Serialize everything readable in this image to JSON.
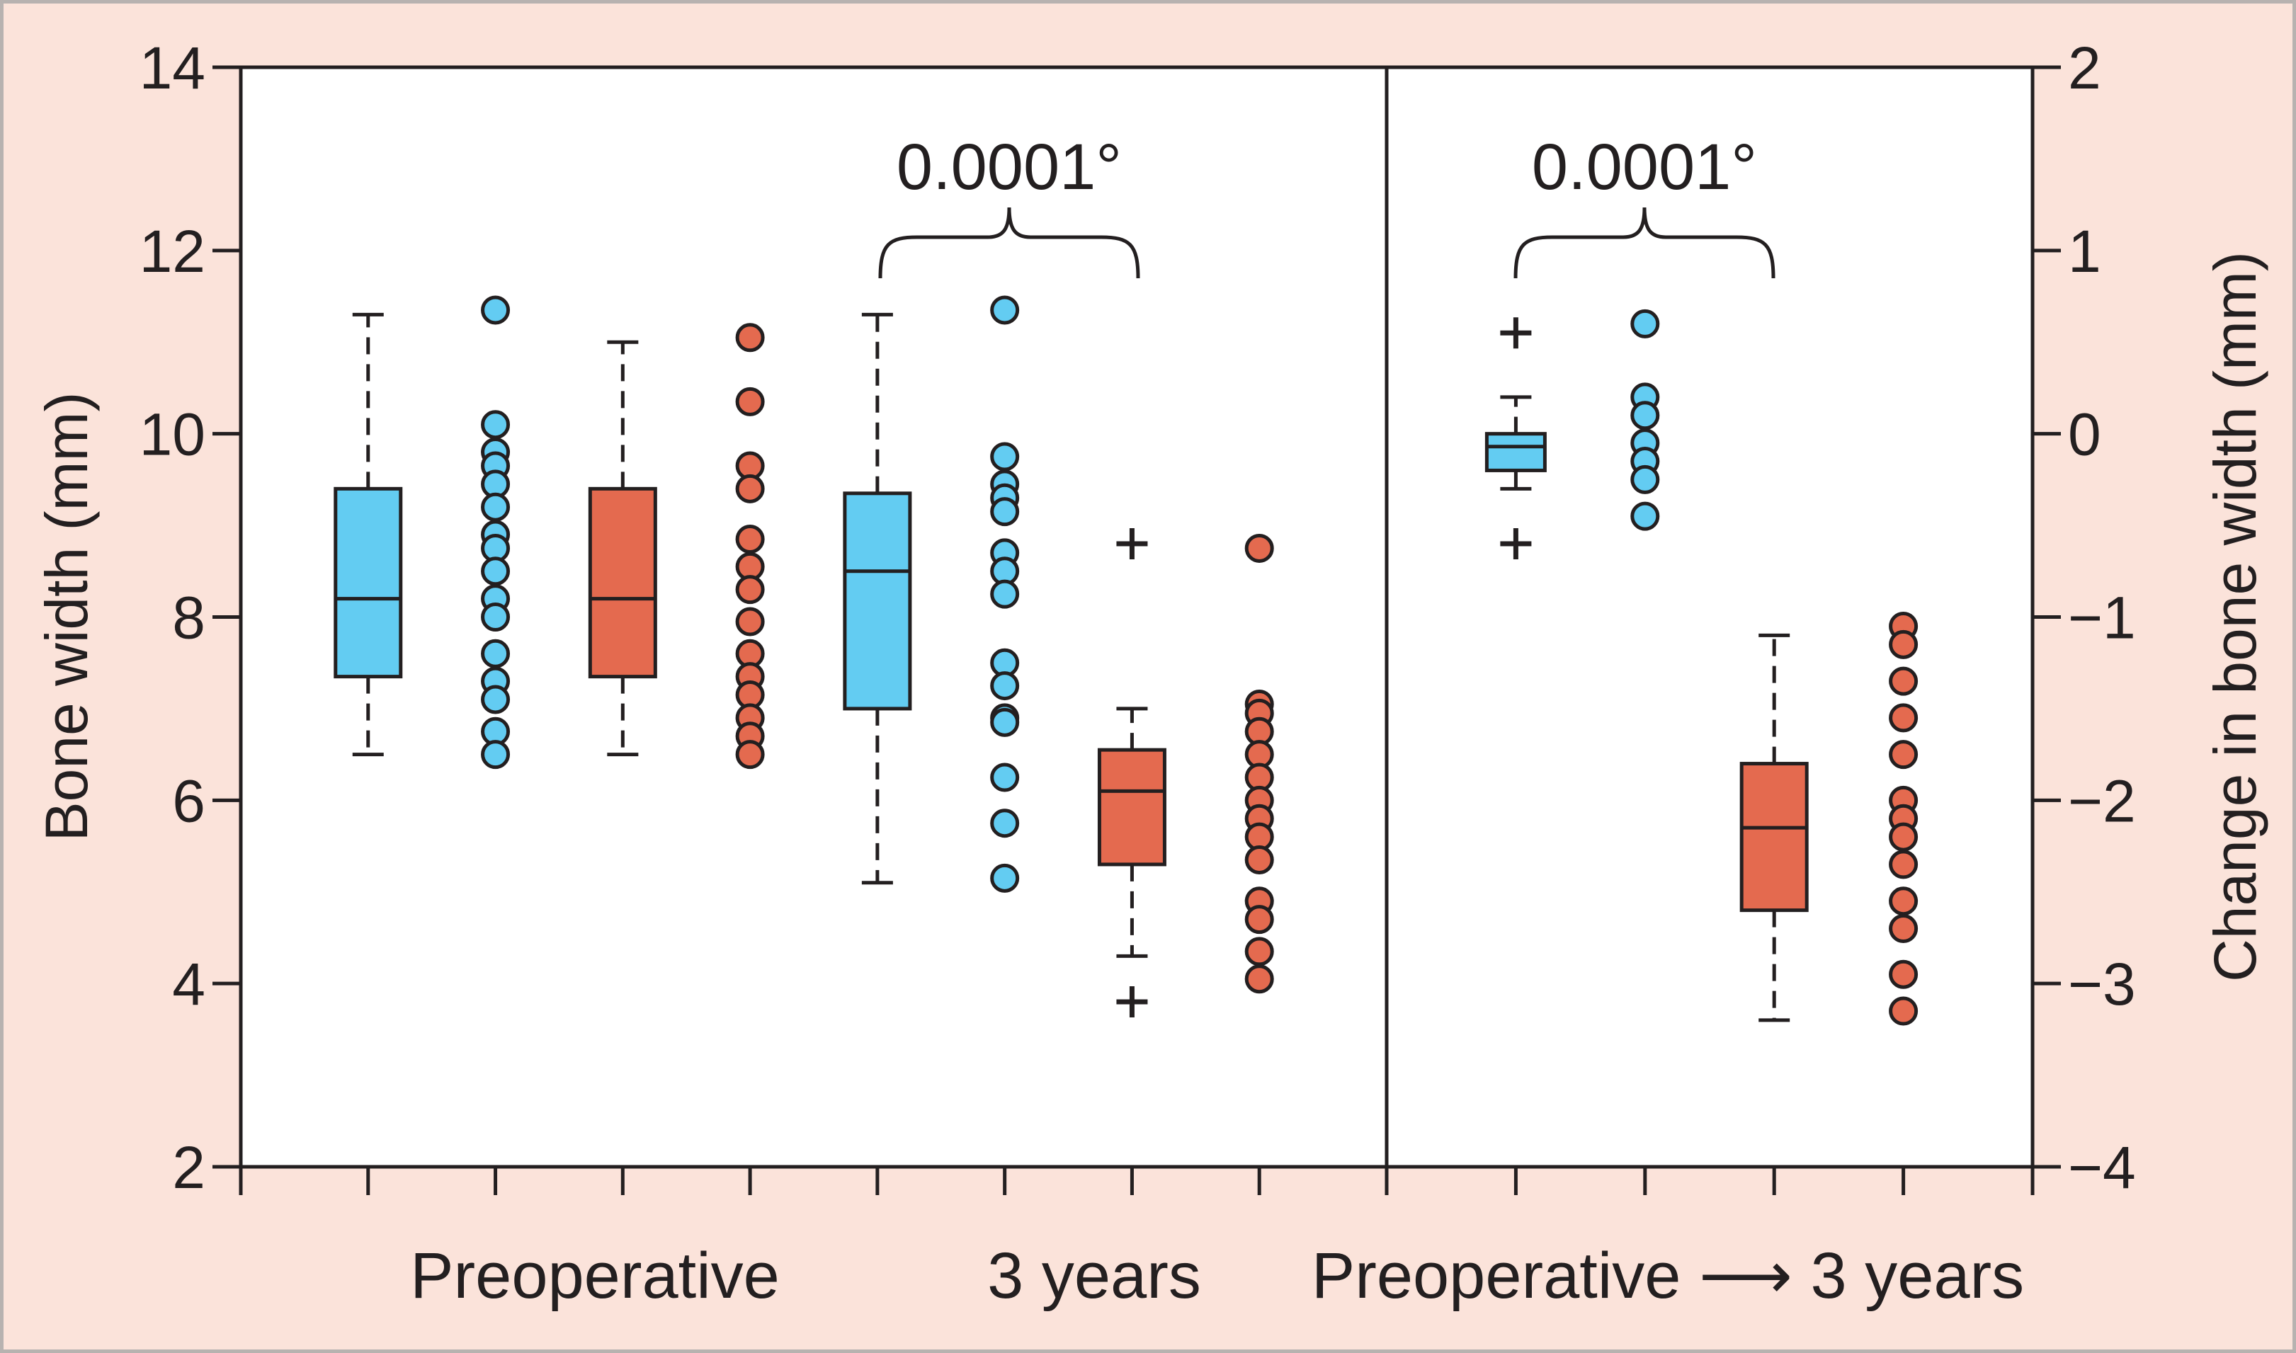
{
  "chart_data": {
    "type": "box",
    "colors": {
      "blue": "#63ccf2",
      "orange": "#e46a4f",
      "outline": "#231f20",
      "background": "#fbe3da"
    },
    "left_axis": {
      "label": "Bone width (mm)",
      "ylim": [
        2,
        14
      ],
      "ticks": [
        "2",
        "4",
        "6",
        "8",
        "10",
        "12",
        "14"
      ]
    },
    "right_axis": {
      "label": "Change in bone width (mm)",
      "ylim": [
        -4,
        2
      ],
      "ticks": [
        "−4",
        "−3",
        "−2",
        "−1",
        "0",
        "1",
        "2"
      ]
    },
    "group_labels": {
      "preoperative": "Preoperative",
      "three_years": "3 years",
      "change": "Preoperative ⟶ 3 years"
    },
    "annotations": [
      {
        "label": "0.0001°",
        "between": [
          "3 years blue",
          "3 years orange"
        ]
      },
      {
        "label": "0.0001°",
        "between": [
          "change blue",
          "change orange"
        ]
      }
    ],
    "left_panel": {
      "boxes": [
        {
          "pos": 1,
          "color": "blue",
          "q1": 7.35,
          "median": 8.2,
          "q3": 9.4,
          "whisker_low": 6.5,
          "whisker_high": 11.3,
          "outliers": []
        },
        {
          "pos": 3,
          "color": "orange",
          "q1": 7.35,
          "median": 8.2,
          "q3": 9.4,
          "whisker_low": 6.5,
          "whisker_high": 11.0,
          "outliers": []
        },
        {
          "pos": 5,
          "color": "blue",
          "q1": 7.0,
          "median": 8.5,
          "q3": 9.35,
          "whisker_low": 5.1,
          "whisker_high": 11.3,
          "outliers": []
        },
        {
          "pos": 7,
          "color": "orange",
          "q1": 5.3,
          "median": 6.1,
          "q3": 6.55,
          "whisker_low": 4.3,
          "whisker_high": 7.0,
          "outliers": [
            8.8,
            3.8
          ]
        }
      ],
      "dots": [
        {
          "pos": 2,
          "color": "blue",
          "values": [
            11.35,
            10.1,
            9.8,
            9.65,
            9.45,
            9.2,
            8.9,
            8.75,
            8.5,
            8.2,
            8.0,
            7.6,
            7.3,
            7.1,
            6.75,
            6.5
          ]
        },
        {
          "pos": 4,
          "color": "orange",
          "values": [
            11.05,
            10.35,
            9.65,
            9.4,
            8.85,
            8.55,
            8.3,
            7.95,
            7.6,
            7.35,
            7.15,
            6.9,
            6.7,
            6.5
          ]
        },
        {
          "pos": 6,
          "color": "blue",
          "values": [
            11.35,
            9.75,
            9.45,
            9.3,
            9.15,
            8.7,
            8.5,
            8.25,
            7.5,
            7.25,
            6.9,
            6.85,
            6.25,
            5.75,
            5.15
          ]
        },
        {
          "pos": 8,
          "color": "orange",
          "values": [
            8.75,
            7.05,
            6.95,
            6.75,
            6.5,
            6.25,
            6.0,
            5.8,
            5.6,
            5.35,
            4.9,
            4.7,
            4.35,
            4.05
          ]
        }
      ]
    },
    "right_panel": {
      "boxes": [
        {
          "pos": 1,
          "color": "blue",
          "q1": -0.2,
          "median": -0.07,
          "q3": 0.0,
          "whisker_low": -0.3,
          "whisker_high": 0.2,
          "outliers": [
            0.55,
            -0.6
          ]
        },
        {
          "pos": 3,
          "color": "orange",
          "q1": -2.6,
          "median": -2.15,
          "q3": -1.8,
          "whisker_low": -3.2,
          "whisker_high": -1.1,
          "outliers": []
        }
      ],
      "dots": [
        {
          "pos": 2,
          "color": "blue",
          "values": [
            0.6,
            0.2,
            0.1,
            -0.05,
            -0.15,
            -0.25,
            -0.45
          ]
        },
        {
          "pos": 4,
          "color": "orange",
          "values": [
            -1.05,
            -1.15,
            -1.35,
            -1.55,
            -1.75,
            -2.0,
            -2.1,
            -2.2,
            -2.35,
            -2.55,
            -2.7,
            -2.95,
            -3.15
          ]
        }
      ]
    }
  }
}
